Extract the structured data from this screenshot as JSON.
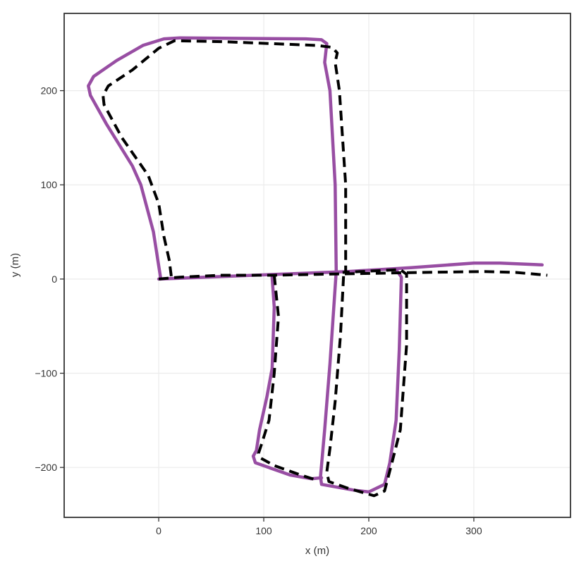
{
  "chart_data": {
    "type": "line",
    "xlabel": "x (m)",
    "ylabel": "y (m)",
    "xlim": [
      -90,
      392
    ],
    "ylim": [
      -253,
      282
    ],
    "x_ticks": [
      0,
      100,
      200,
      300
    ],
    "y_ticks": [
      -200,
      -100,
      0,
      100,
      200
    ],
    "x_tick_labels": [
      "0",
      "100",
      "200",
      "300"
    ],
    "y_tick_labels": [
      "−200",
      "−100",
      "0",
      "100",
      "200"
    ],
    "grid": true,
    "legend": "none",
    "series": [
      {
        "style": "solid",
        "color": "#984ea3",
        "points": [
          [
            0,
            0
          ],
          [
            180,
            8
          ],
          [
            240,
            12
          ],
          [
            300,
            17
          ],
          [
            325,
            17
          ],
          [
            365,
            15
          ],
          null,
          [
            2,
            0
          ],
          [
            -5,
            50
          ],
          [
            -17,
            100
          ],
          [
            -25,
            120
          ],
          [
            -50,
            165
          ],
          [
            -65,
            195
          ],
          [
            -67,
            205
          ],
          [
            -62,
            215
          ],
          [
            -40,
            232
          ],
          [
            -15,
            248
          ],
          [
            5,
            255
          ],
          [
            20,
            256
          ],
          [
            140,
            255
          ],
          [
            155,
            254
          ],
          [
            160,
            250
          ],
          [
            158,
            230
          ],
          [
            163,
            200
          ],
          [
            168,
            100
          ],
          [
            169,
            8
          ],
          [
            163,
            -90
          ],
          [
            158,
            -160
          ],
          [
            154,
            -210
          ],
          [
            155,
            -218
          ],
          [
            185,
            -224
          ],
          [
            200,
            -226
          ],
          [
            215,
            -218
          ],
          [
            220,
            -195
          ],
          [
            226,
            -150
          ],
          [
            229,
            -75
          ],
          [
            231,
            2
          ],
          [
            226,
            10
          ],
          null,
          [
            108,
            2
          ],
          [
            110,
            -30
          ],
          [
            108,
            -95
          ],
          [
            103,
            -125
          ],
          [
            100,
            -140
          ],
          [
            96,
            -160
          ],
          [
            93,
            -182
          ],
          [
            90,
            -188
          ],
          [
            92,
            -195
          ],
          [
            125,
            -208
          ],
          [
            145,
            -212
          ],
          [
            155,
            -211
          ],
          null
        ]
      },
      {
        "style": "dashed",
        "color": "#000000",
        "points": [
          [
            0,
            0
          ],
          [
            20,
            2
          ],
          [
            60,
            4
          ],
          [
            110,
            4
          ],
          [
            150,
            5
          ],
          [
            200,
            6
          ],
          [
            250,
            7
          ],
          [
            310,
            8
          ],
          [
            340,
            7
          ],
          [
            370,
            4
          ],
          null,
          [
            12,
            3
          ],
          [
            10,
            20
          ],
          [
            5,
            45
          ],
          [
            0,
            80
          ],
          [
            -10,
            110
          ],
          [
            -35,
            150
          ],
          [
            -52,
            185
          ],
          [
            -53,
            195
          ],
          [
            -48,
            205
          ],
          [
            -25,
            222
          ],
          [
            0,
            245
          ],
          [
            15,
            253
          ],
          [
            60,
            252
          ],
          [
            150,
            248
          ],
          [
            165,
            246
          ],
          [
            170,
            240
          ],
          [
            168,
            230
          ],
          [
            172,
            200
          ],
          [
            178,
            100
          ],
          [
            178,
            8
          ],
          null,
          [
            176,
            3
          ],
          [
            173,
            -60
          ],
          [
            168,
            -130
          ],
          [
            163,
            -180
          ],
          [
            160,
            -205
          ],
          [
            162,
            -215
          ],
          [
            180,
            -222
          ],
          [
            205,
            -230
          ],
          [
            215,
            -225
          ],
          [
            222,
            -195
          ],
          [
            230,
            -160
          ],
          [
            234,
            -100
          ],
          [
            236,
            -70
          ],
          [
            236,
            5
          ],
          [
            230,
            10
          ],
          [
            175,
            7
          ],
          null,
          [
            110,
            4
          ],
          [
            114,
            -40
          ],
          [
            110,
            -100
          ],
          [
            105,
            -150
          ],
          [
            98,
            -175
          ],
          [
            95,
            -185
          ],
          [
            97,
            -190
          ],
          [
            110,
            -198
          ],
          [
            135,
            -208
          ],
          [
            152,
            -214
          ]
        ]
      }
    ]
  }
}
